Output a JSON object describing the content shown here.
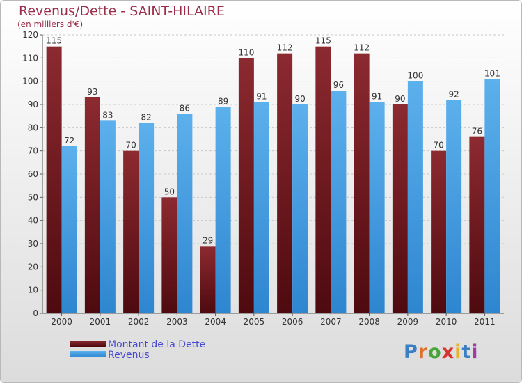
{
  "header": {
    "title": "Revenus/Dette - SAINT-HILAIRE",
    "subtitle": "(en milliers d'€)"
  },
  "logo": {
    "text": "Proxiti",
    "letter_colors": [
      "#3a7fc4",
      "#e0712b",
      "#4aa33a",
      "#d9332d",
      "#e8b32a",
      "#3a7fc4",
      "#9b3fa7"
    ]
  },
  "colors": {
    "dette": "#7a1f27",
    "revenus": "#4aa3e6",
    "title": "#9b2d4a",
    "legend_text": "#4a4ad0"
  },
  "chart_data": {
    "type": "bar",
    "title": "Revenus/Dette - SAINT-HILAIRE",
    "subtitle": "(en milliers d'€)",
    "categories": [
      "2000",
      "2001",
      "2002",
      "2003",
      "2004",
      "2005",
      "2006",
      "2007",
      "2008",
      "2009",
      "2010",
      "2011"
    ],
    "series": [
      {
        "name": "Montant de la Dette",
        "values": [
          115,
          93,
          70,
          50,
          29,
          110,
          112,
          115,
          112,
          90,
          70,
          76
        ]
      },
      {
        "name": "Revenus",
        "values": [
          72,
          83,
          82,
          86,
          89,
          91,
          90,
          96,
          91,
          100,
          92,
          101
        ]
      }
    ],
    "ylim": [
      0,
      120
    ],
    "yticks": [
      0,
      10,
      20,
      30,
      40,
      50,
      60,
      70,
      80,
      90,
      100,
      110,
      120
    ],
    "grid": "horizontal",
    "legend": "bottom-left"
  }
}
